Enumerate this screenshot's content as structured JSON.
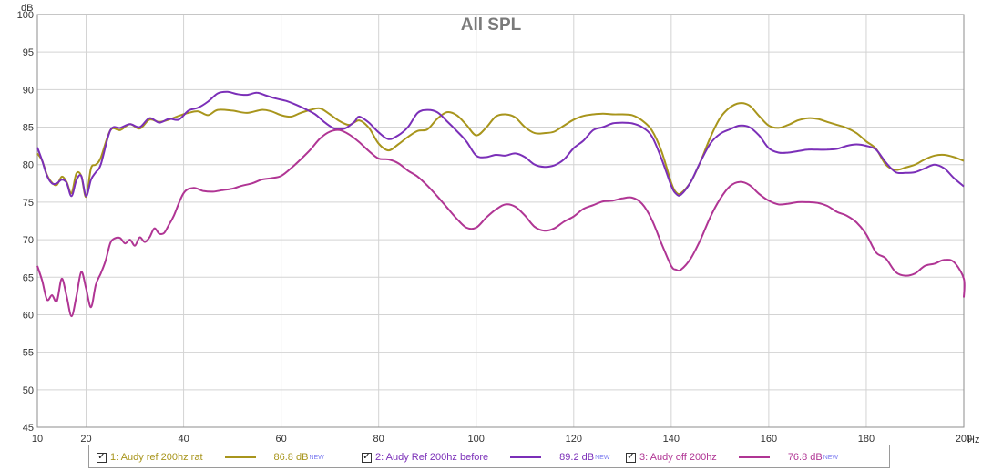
{
  "chart_data": {
    "type": "line",
    "title": "All SPL",
    "ylabel": "dB",
    "xunit": "Hz",
    "xlim": [
      10,
      200
    ],
    "ylim": [
      45,
      100
    ],
    "xticks": [
      10,
      20,
      40,
      60,
      80,
      100,
      120,
      140,
      160,
      180,
      200
    ],
    "yticks": [
      45,
      50,
      55,
      60,
      65,
      70,
      75,
      80,
      85,
      90,
      95,
      100
    ],
    "grid": true,
    "legend": "bottom",
    "series": [
      {
        "name": "1: Audy ref 200hz rat",
        "value_label": "86.8 dB",
        "badge": "NEW",
        "color": "#a8951c",
        "points": [
          [
            10,
            81.5
          ],
          [
            11,
            80.5
          ],
          [
            12,
            78.6
          ],
          [
            13,
            77.6
          ],
          [
            14,
            77.3
          ],
          [
            15,
            78.4
          ],
          [
            16,
            77.7
          ],
          [
            17,
            76.2
          ],
          [
            18,
            78.8
          ],
          [
            19,
            78.5
          ],
          [
            20,
            75.7
          ],
          [
            21,
            79.5
          ],
          [
            22,
            80
          ],
          [
            23,
            80.9
          ],
          [
            25,
            84.6
          ],
          [
            27,
            84.6
          ],
          [
            29,
            85.4
          ],
          [
            31,
            84.8
          ],
          [
            33,
            86
          ],
          [
            35,
            85.7
          ],
          [
            37,
            86
          ],
          [
            39,
            86.5
          ],
          [
            41,
            86.9
          ],
          [
            43,
            87.1
          ],
          [
            45,
            86.6
          ],
          [
            47,
            87.3
          ],
          [
            50,
            87.2
          ],
          [
            53,
            86.9
          ],
          [
            56,
            87.3
          ],
          [
            58,
            87.1
          ],
          [
            60,
            86.6
          ],
          [
            62,
            86.4
          ],
          [
            64,
            86.9
          ],
          [
            66,
            87.3
          ],
          [
            68,
            87.5
          ],
          [
            70,
            86.7
          ],
          [
            72,
            85.8
          ],
          [
            74,
            85.3
          ],
          [
            76,
            85.9
          ],
          [
            78,
            84.9
          ],
          [
            80,
            82.8
          ],
          [
            82,
            81.9
          ],
          [
            84,
            82.7
          ],
          [
            86,
            83.7
          ],
          [
            88,
            84.5
          ],
          [
            90,
            84.7
          ],
          [
            92,
            86.1
          ],
          [
            94,
            87
          ],
          [
            96,
            86.6
          ],
          [
            98,
            85.3
          ],
          [
            100,
            83.9
          ],
          [
            102,
            84.9
          ],
          [
            104,
            86.4
          ],
          [
            106,
            86.7
          ],
          [
            108,
            86.3
          ],
          [
            110,
            85
          ],
          [
            112,
            84.2
          ],
          [
            114,
            84.2
          ],
          [
            116,
            84.4
          ],
          [
            118,
            85.2
          ],
          [
            120,
            86
          ],
          [
            122,
            86.5
          ],
          [
            124,
            86.7
          ],
          [
            126,
            86.8
          ],
          [
            128,
            86.7
          ],
          [
            130,
            86.7
          ],
          [
            132,
            86.6
          ],
          [
            134,
            85.9
          ],
          [
            136,
            84.6
          ],
          [
            138,
            81.8
          ],
          [
            140,
            77.6
          ],
          [
            141,
            76.3
          ],
          [
            142,
            76.2
          ],
          [
            144,
            77.7
          ],
          [
            146,
            80.4
          ],
          [
            148,
            83.6
          ],
          [
            150,
            86.2
          ],
          [
            152,
            87.6
          ],
          [
            154,
            88.2
          ],
          [
            156,
            87.9
          ],
          [
            158,
            86.5
          ],
          [
            160,
            85.2
          ],
          [
            162,
            84.9
          ],
          [
            164,
            85.3
          ],
          [
            166,
            85.9
          ],
          [
            168,
            86.2
          ],
          [
            170,
            86.1
          ],
          [
            172,
            85.7
          ],
          [
            174,
            85.3
          ],
          [
            176,
            84.9
          ],
          [
            178,
            84.2
          ],
          [
            180,
            83.1
          ],
          [
            182,
            82.1
          ],
          [
            184,
            80
          ],
          [
            186,
            79.3
          ],
          [
            188,
            79.6
          ],
          [
            190,
            80
          ],
          [
            192,
            80.7
          ],
          [
            194,
            81.2
          ],
          [
            196,
            81.3
          ],
          [
            198,
            81
          ],
          [
            200,
            80.5
          ]
        ]
      },
      {
        "name": "2: Audy Ref 200hz before",
        "value_label": "89.2 dB",
        "badge": "NEW",
        "color": "#7b2fb8",
        "points": [
          [
            10,
            82.3
          ],
          [
            11,
            80.5
          ],
          [
            12,
            78.5
          ],
          [
            13,
            77.5
          ],
          [
            14,
            77.5
          ],
          [
            15,
            78
          ],
          [
            16,
            77.6
          ],
          [
            17,
            75.8
          ],
          [
            18,
            77.9
          ],
          [
            19,
            78.5
          ],
          [
            20,
            75.8
          ],
          [
            21,
            78
          ],
          [
            22,
            79
          ],
          [
            23,
            80
          ],
          [
            25,
            84.6
          ],
          [
            27,
            84.9
          ],
          [
            29,
            85.4
          ],
          [
            31,
            85
          ],
          [
            33,
            86.2
          ],
          [
            35,
            85.6
          ],
          [
            37,
            86.1
          ],
          [
            39,
            86
          ],
          [
            41,
            87.2
          ],
          [
            43,
            87.6
          ],
          [
            45,
            88.4
          ],
          [
            47,
            89.5
          ],
          [
            49,
            89.7
          ],
          [
            51,
            89.4
          ],
          [
            53,
            89.3
          ],
          [
            55,
            89.6
          ],
          [
            57,
            89.2
          ],
          [
            59,
            88.8
          ],
          [
            61,
            88.5
          ],
          [
            63,
            88
          ],
          [
            65,
            87.4
          ],
          [
            67,
            86.7
          ],
          [
            69,
            85.6
          ],
          [
            71,
            84.8
          ],
          [
            73,
            84.8
          ],
          [
            75,
            85.7
          ],
          [
            76,
            86.4
          ],
          [
            78,
            85.6
          ],
          [
            80,
            84.3
          ],
          [
            82,
            83.4
          ],
          [
            84,
            83.9
          ],
          [
            86,
            85
          ],
          [
            88,
            86.9
          ],
          [
            90,
            87.3
          ],
          [
            92,
            87
          ],
          [
            94,
            85.8
          ],
          [
            96,
            84.5
          ],
          [
            98,
            83.1
          ],
          [
            100,
            81.2
          ],
          [
            102,
            81
          ],
          [
            104,
            81.3
          ],
          [
            106,
            81.2
          ],
          [
            108,
            81.5
          ],
          [
            110,
            81
          ],
          [
            112,
            80
          ],
          [
            114,
            79.7
          ],
          [
            116,
            79.9
          ],
          [
            118,
            80.7
          ],
          [
            120,
            82.2
          ],
          [
            122,
            83.2
          ],
          [
            124,
            84.6
          ],
          [
            126,
            85
          ],
          [
            128,
            85.5
          ],
          [
            130,
            85.6
          ],
          [
            132,
            85.5
          ],
          [
            134,
            85
          ],
          [
            136,
            83.8
          ],
          [
            138,
            80.8
          ],
          [
            140,
            77.2
          ],
          [
            141,
            76.1
          ],
          [
            142,
            76
          ],
          [
            144,
            77.7
          ],
          [
            146,
            80.4
          ],
          [
            148,
            82.8
          ],
          [
            150,
            84.1
          ],
          [
            152,
            84.7
          ],
          [
            154,
            85.2
          ],
          [
            156,
            85
          ],
          [
            158,
            83.9
          ],
          [
            160,
            82.2
          ],
          [
            162,
            81.6
          ],
          [
            164,
            81.6
          ],
          [
            166,
            81.8
          ],
          [
            168,
            82
          ],
          [
            170,
            82
          ],
          [
            172,
            82
          ],
          [
            174,
            82.1
          ],
          [
            176,
            82.5
          ],
          [
            178,
            82.7
          ],
          [
            180,
            82.5
          ],
          [
            182,
            82
          ],
          [
            184,
            80.3
          ],
          [
            186,
            79
          ],
          [
            188,
            78.9
          ],
          [
            190,
            79
          ],
          [
            192,
            79.5
          ],
          [
            194,
            80
          ],
          [
            196,
            79.5
          ],
          [
            198,
            78.2
          ],
          [
            200,
            77.1
          ]
        ]
      },
      {
        "name": "3: Audy off 200hz",
        "value_label": "76.8 dB",
        "badge": "NEW",
        "color": "#b03594",
        "points": [
          [
            10,
            66.5
          ],
          [
            11,
            64.5
          ],
          [
            12,
            62
          ],
          [
            13,
            62.6
          ],
          [
            14,
            61.8
          ],
          [
            15,
            64.8
          ],
          [
            16,
            62.5
          ],
          [
            17,
            59.8
          ],
          [
            18,
            62.4
          ],
          [
            19,
            65.7
          ],
          [
            20,
            63.5
          ],
          [
            21,
            61
          ],
          [
            22,
            64
          ],
          [
            23,
            65.5
          ],
          [
            24,
            67.2
          ],
          [
            25,
            69.6
          ],
          [
            26,
            70.2
          ],
          [
            27,
            70.2
          ],
          [
            28,
            69.5
          ],
          [
            29,
            70
          ],
          [
            30,
            69.2
          ],
          [
            31,
            70.3
          ],
          [
            32,
            69.7
          ],
          [
            33,
            70.3
          ],
          [
            34,
            71.5
          ],
          [
            35,
            70.8
          ],
          [
            36,
            70.9
          ],
          [
            37,
            72
          ],
          [
            38,
            73.2
          ],
          [
            40,
            76.2
          ],
          [
            42,
            76.9
          ],
          [
            44,
            76.5
          ],
          [
            46,
            76.4
          ],
          [
            48,
            76.6
          ],
          [
            50,
            76.8
          ],
          [
            52,
            77.2
          ],
          [
            54,
            77.5
          ],
          [
            56,
            78
          ],
          [
            58,
            78.2
          ],
          [
            60,
            78.5
          ],
          [
            62,
            79.5
          ],
          [
            64,
            80.7
          ],
          [
            66,
            82
          ],
          [
            68,
            83.5
          ],
          [
            70,
            84.4
          ],
          [
            72,
            84.6
          ],
          [
            74,
            84
          ],
          [
            76,
            83
          ],
          [
            78,
            81.8
          ],
          [
            80,
            80.8
          ],
          [
            82,
            80.7
          ],
          [
            84,
            80.2
          ],
          [
            86,
            79.2
          ],
          [
            88,
            78.4
          ],
          [
            90,
            77.2
          ],
          [
            92,
            75.8
          ],
          [
            94,
            74.3
          ],
          [
            96,
            72.8
          ],
          [
            98,
            71.6
          ],
          [
            100,
            71.6
          ],
          [
            102,
            72.9
          ],
          [
            104,
            74
          ],
          [
            106,
            74.7
          ],
          [
            108,
            74.4
          ],
          [
            110,
            73.2
          ],
          [
            112,
            71.7
          ],
          [
            114,
            71.2
          ],
          [
            116,
            71.5
          ],
          [
            118,
            72.4
          ],
          [
            120,
            73.1
          ],
          [
            122,
            74.1
          ],
          [
            124,
            74.6
          ],
          [
            126,
            75.1
          ],
          [
            128,
            75.2
          ],
          [
            130,
            75.5
          ],
          [
            132,
            75.6
          ],
          [
            134,
            74.8
          ],
          [
            136,
            72.7
          ],
          [
            138,
            69.5
          ],
          [
            140,
            66.5
          ],
          [
            141,
            66
          ],
          [
            142,
            66
          ],
          [
            144,
            67.5
          ],
          [
            146,
            70
          ],
          [
            148,
            73
          ],
          [
            150,
            75.4
          ],
          [
            152,
            77.1
          ],
          [
            154,
            77.7
          ],
          [
            156,
            77.3
          ],
          [
            158,
            76.1
          ],
          [
            160,
            75.2
          ],
          [
            162,
            74.7
          ],
          [
            164,
            74.8
          ],
          [
            166,
            75
          ],
          [
            168,
            75
          ],
          [
            170,
            74.9
          ],
          [
            172,
            74.5
          ],
          [
            174,
            73.7
          ],
          [
            176,
            73.2
          ],
          [
            178,
            72.3
          ],
          [
            180,
            70.7
          ],
          [
            182,
            68.3
          ],
          [
            184,
            67.5
          ],
          [
            186,
            65.7
          ],
          [
            188,
            65.2
          ],
          [
            190,
            65.5
          ],
          [
            192,
            66.5
          ],
          [
            194,
            66.8
          ],
          [
            196,
            67.3
          ],
          [
            198,
            67
          ],
          [
            200,
            64.8
          ],
          [
            201,
            62.3
          ]
        ]
      }
    ]
  }
}
